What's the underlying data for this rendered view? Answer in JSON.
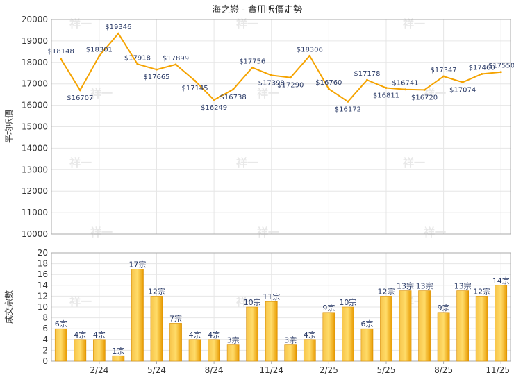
{
  "chart_data": [
    {
      "type": "line",
      "title": "海之戀 - 實用呎價走勢",
      "ylabel": "平均呎價",
      "ylim": [
        10000,
        20000
      ],
      "yticks": [
        10000,
        11000,
        12000,
        13000,
        14000,
        15000,
        16000,
        17000,
        18000,
        19000,
        20000
      ],
      "color": "#f5a300",
      "values": [
        18148,
        16707,
        18301,
        19346,
        17918,
        17665,
        17899,
        17145,
        16249,
        16738,
        17756,
        17398,
        17290,
        18306,
        16760,
        16172,
        17178,
        16811,
        16741,
        16720,
        17347,
        17074,
        17460,
        17550
      ],
      "value_labels": [
        "$18148",
        "$16707",
        "$18301",
        "$19346",
        "$17918",
        "$17665",
        "$17899",
        "$17145",
        "$16249",
        "$16738",
        "$17756",
        "$17398",
        "$17290",
        "$18306",
        "$16760",
        "$16172",
        "$17178",
        "$16811",
        "$16741",
        "$16720",
        "$17347",
        "$17074",
        "$17460",
        "$17550"
      ]
    },
    {
      "type": "bar",
      "ylabel": "成交宗數",
      "ylim": [
        0,
        20
      ],
      "yticks": [
        0,
        2,
        4,
        6,
        8,
        10,
        12,
        14,
        16,
        18,
        20
      ],
      "color": "#f5b21a",
      "values": [
        6,
        4,
        4,
        1,
        17,
        12,
        7,
        4,
        4,
        3,
        10,
        11,
        3,
        4,
        9,
        10,
        6,
        12,
        13,
        13,
        9,
        13,
        12,
        14
      ],
      "value_labels": [
        "6宗",
        "4宗",
        "4宗",
        "1宗",
        "17宗",
        "12宗",
        "7宗",
        "4宗",
        "4宗",
        "3宗",
        "10宗",
        "11宗",
        "3宗",
        "4宗",
        "9宗",
        "10宗",
        "6宗",
        "12宗",
        "13宗",
        "13宗",
        "9宗",
        "13宗",
        "12宗",
        "14宗"
      ],
      "x_tick_labels": [
        {
          "index": 2,
          "label": "2/24"
        },
        {
          "index": 5,
          "label": "5/24"
        },
        {
          "index": 8,
          "label": "8/24"
        },
        {
          "index": 11,
          "label": "11/24"
        },
        {
          "index": 14,
          "label": "2/25"
        },
        {
          "index": 17,
          "label": "5/25"
        },
        {
          "index": 20,
          "label": "8/25"
        },
        {
          "index": 23,
          "label": "11/25"
        }
      ]
    }
  ],
  "watermark": "祥一"
}
